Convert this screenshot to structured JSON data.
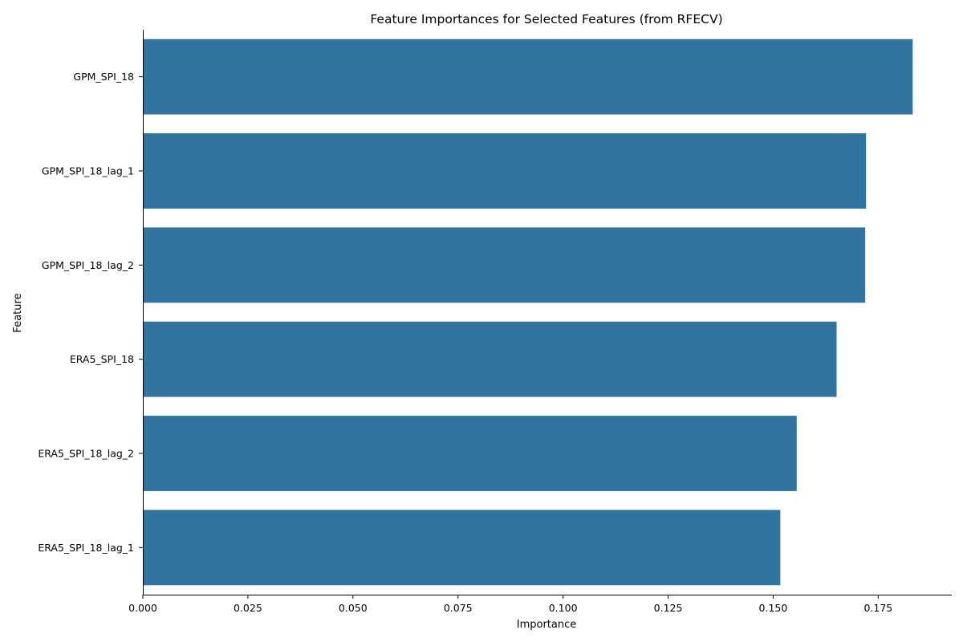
{
  "chart_data": {
    "type": "bar",
    "orientation": "horizontal",
    "title": "Feature Importances for Selected Features (from RFECV)",
    "xlabel": "Importance",
    "ylabel": "Feature",
    "categories": [
      "GPM_SPI_18",
      "GPM_SPI_18_lag_1",
      "GPM_SPI_18_lag_2",
      "ERA5_SPI_18",
      "ERA5_SPI_18_lag_2",
      "ERA5_SPI_18_lag_1"
    ],
    "values": [
      0.1832,
      0.1721,
      0.1719,
      0.1651,
      0.1556,
      0.1517
    ],
    "xlim": [
      0,
      0.1925
    ],
    "xticks": [
      0.0,
      0.025,
      0.05,
      0.075,
      0.1,
      0.125,
      0.15,
      0.175
    ],
    "xtick_labels": [
      "0.000",
      "0.025",
      "0.050",
      "0.075",
      "0.100",
      "0.125",
      "0.150",
      "0.175"
    ],
    "bar_color": "#3274a1",
    "grid": false,
    "legend": "none"
  }
}
